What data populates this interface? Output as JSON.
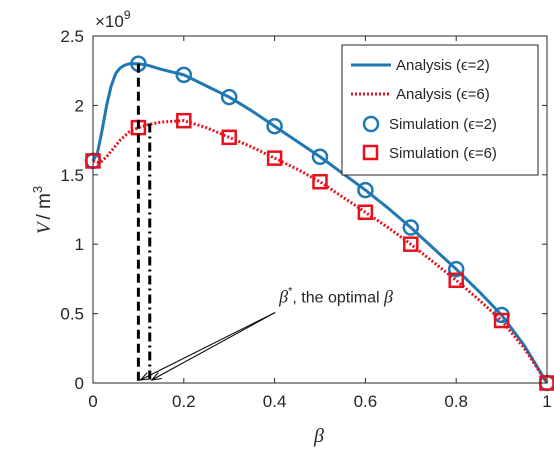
{
  "chart_data": {
    "type": "line",
    "title": "",
    "xlabel": "β",
    "ylabel_var": "V",
    "ylabel_unit": "/ m",
    "ylabel_unit_exp": "3",
    "y_multiplier_base": "×10",
    "y_multiplier_exp": "9",
    "xlim": [
      0,
      1
    ],
    "ylim": [
      0,
      2.5
    ],
    "x_ticks": [
      "0",
      "0.2",
      "0.4",
      "0.6",
      "0.8",
      "1"
    ],
    "y_ticks": [
      "0",
      "0.5",
      "1",
      "1.5",
      "2",
      "2.5"
    ],
    "grid": false,
    "legend_position": "top-right",
    "series": [
      {
        "name": "Analysis (ϵ=2)",
        "kind": "line",
        "style": "solid",
        "color": "#1f77b4",
        "x": [
          0,
          0.01,
          0.02,
          0.03,
          0.04,
          0.05,
          0.06,
          0.07,
          0.08,
          0.09,
          0.1,
          0.12,
          0.15,
          0.2,
          0.25,
          0.3,
          0.35,
          0.4,
          0.45,
          0.5,
          0.55,
          0.6,
          0.65,
          0.7,
          0.75,
          0.8,
          0.85,
          0.9,
          0.95,
          1
        ],
        "y": [
          1.6,
          1.66,
          1.82,
          2.0,
          2.14,
          2.23,
          2.27,
          2.29,
          2.3,
          2.3,
          2.3,
          2.29,
          2.26,
          2.22,
          2.14,
          2.06,
          1.96,
          1.85,
          1.74,
          1.63,
          1.51,
          1.39,
          1.26,
          1.12,
          0.97,
          0.82,
          0.66,
          0.49,
          0.27,
          0.0
        ]
      },
      {
        "name": "Analysis (ϵ=6)",
        "kind": "line",
        "style": "dotted",
        "color": "#e8101c",
        "x": [
          0,
          0.01,
          0.02,
          0.03,
          0.04,
          0.05,
          0.06,
          0.07,
          0.08,
          0.1,
          0.12,
          0.15,
          0.2,
          0.25,
          0.3,
          0.35,
          0.4,
          0.45,
          0.5,
          0.55,
          0.6,
          0.65,
          0.7,
          0.75,
          0.8,
          0.85,
          0.9,
          0.95,
          1
        ],
        "y": [
          1.6,
          1.59,
          1.6,
          1.63,
          1.67,
          1.71,
          1.75,
          1.78,
          1.81,
          1.84,
          1.86,
          1.88,
          1.89,
          1.84,
          1.77,
          1.7,
          1.62,
          1.54,
          1.45,
          1.34,
          1.23,
          1.12,
          1.0,
          0.87,
          0.74,
          0.6,
          0.45,
          0.25,
          0.0
        ]
      },
      {
        "name": "Simulation (ϵ=2)",
        "kind": "marker",
        "marker": "circle",
        "color": "#1f77b4",
        "x": [
          0,
          0.1,
          0.2,
          0.3,
          0.4,
          0.5,
          0.6,
          0.7,
          0.8,
          0.9,
          1
        ],
        "y": [
          1.6,
          2.3,
          2.22,
          2.06,
          1.85,
          1.63,
          1.39,
          1.12,
          0.82,
          0.49,
          0.0
        ]
      },
      {
        "name": "Simulation (ϵ=6)",
        "kind": "marker",
        "marker": "square",
        "color": "#e8101c",
        "x": [
          0,
          0.1,
          0.2,
          0.3,
          0.4,
          0.5,
          0.6,
          0.7,
          0.8,
          0.9,
          1
        ],
        "y": [
          1.6,
          1.84,
          1.89,
          1.77,
          1.62,
          1.45,
          1.23,
          1.0,
          0.74,
          0.45,
          0.0
        ]
      }
    ],
    "optimal_markers": [
      {
        "x": 0.1,
        "y": 2.3,
        "style": "dashed"
      },
      {
        "x": 0.125,
        "y": 1.87,
        "style": "dashdot"
      }
    ],
    "annotation": {
      "beta": "β",
      "star": "*",
      "text_mid": ", the optimal ",
      "beta2": "β",
      "text_pos": [
        0.41,
        0.58
      ],
      "arrow_targets": [
        [
          0.1,
          0
        ],
        [
          0.125,
          0
        ]
      ]
    }
  }
}
